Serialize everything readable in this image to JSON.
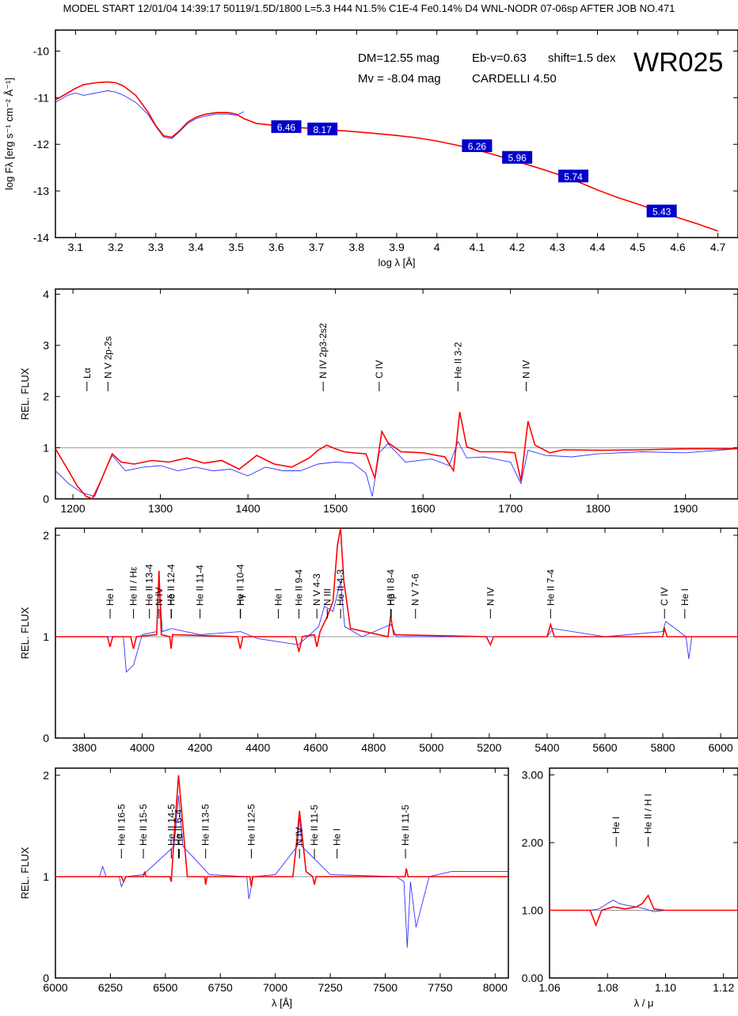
{
  "header": "MODEL START   12/01/04  14:39:17   50119/1.5D/1800 L=5.3 H44 N1.5% C1E-4 Fe0.14% D4 WNL-NODR 07-06sp    AFTER JOB NO.471",
  "colors": {
    "model": "#ff0000",
    "observed": "#3333ff",
    "photometry_box": "#0000cc",
    "reference_line": "#999999"
  },
  "chart_data": [
    {
      "id": "sed",
      "type": "line",
      "title": "WR025",
      "xlabel": "log λ [Å]",
      "ylabel": "log Fλ [erg s⁻¹ cm⁻² Å⁻¹]",
      "xlim": [
        3.05,
        4.75
      ],
      "ylim": [
        -14,
        -9.55
      ],
      "xticks": [
        3.1,
        3.2,
        3.3,
        3.4,
        3.5,
        3.6,
        3.7,
        3.8,
        3.9,
        4.0,
        4.1,
        4.2,
        4.3,
        4.4,
        4.5,
        4.6,
        4.7
      ],
      "yticks": [
        -14,
        -13,
        -12,
        -11,
        -10
      ],
      "annotations": {
        "dm": "DM=12.55 mag",
        "ebv": "Eb-v=0.63",
        "shift": "shift=1.5 dex",
        "mv": "Mv =  -8.04 mag",
        "law": "CARDELLI 4.50"
      },
      "series": [
        {
          "role": "model",
          "x": [
            3.05,
            3.08,
            3.1,
            3.12,
            3.15,
            3.18,
            3.2,
            3.22,
            3.25,
            3.28,
            3.3,
            3.32,
            3.34,
            3.36,
            3.38,
            3.4,
            3.42,
            3.45,
            3.48,
            3.5,
            3.52,
            3.55,
            3.6,
            3.65,
            3.7,
            3.75,
            3.8,
            3.85,
            3.9,
            3.95,
            4.0,
            4.05,
            4.1,
            4.15,
            4.2,
            4.25,
            4.3,
            4.35,
            4.4,
            4.45,
            4.5,
            4.55,
            4.6,
            4.65,
            4.7
          ],
          "y": [
            -11.05,
            -10.9,
            -10.8,
            -10.72,
            -10.68,
            -10.66,
            -10.68,
            -10.75,
            -10.95,
            -11.3,
            -11.6,
            -11.82,
            -11.85,
            -11.7,
            -11.52,
            -11.42,
            -11.36,
            -11.32,
            -11.32,
            -11.35,
            -11.45,
            -11.55,
            -11.6,
            -11.64,
            -11.66,
            -11.7,
            -11.73,
            -11.77,
            -11.81,
            -11.86,
            -11.93,
            -12.02,
            -12.12,
            -12.24,
            -12.37,
            -12.5,
            -12.64,
            -12.8,
            -12.98,
            -13.14,
            -13.28,
            -13.43,
            -13.57,
            -13.71,
            -13.86
          ]
        },
        {
          "role": "observed",
          "x": [
            3.05,
            3.08,
            3.1,
            3.12,
            3.15,
            3.18,
            3.2,
            3.22,
            3.25,
            3.28,
            3.3,
            3.32,
            3.34,
            3.36,
            3.38,
            3.4,
            3.42,
            3.45,
            3.48,
            3.5,
            3.52
          ],
          "y": [
            -11.1,
            -10.95,
            -10.9,
            -10.95,
            -10.9,
            -10.85,
            -10.88,
            -10.95,
            -11.1,
            -11.35,
            -11.62,
            -11.85,
            -11.88,
            -11.72,
            -11.55,
            -11.45,
            -11.4,
            -11.35,
            -11.35,
            -11.38,
            -11.3
          ]
        }
      ],
      "photometry": [
        {
          "x": 3.625,
          "y": -11.62,
          "label": "6.46"
        },
        {
          "x": 3.715,
          "y": -11.67,
          "label": "8.17"
        },
        {
          "x": 4.1,
          "y": -12.03,
          "label": "6.26"
        },
        {
          "x": 4.2,
          "y": -12.28,
          "label": "5.96"
        },
        {
          "x": 4.34,
          "y": -12.68,
          "label": "5.74"
        },
        {
          "x": 4.56,
          "y": -13.43,
          "label": "5.43"
        }
      ]
    },
    {
      "id": "uv",
      "type": "line",
      "ylabel": "REL. FLUX",
      "xlim": [
        1180,
        1960
      ],
      "ylim": [
        0,
        4.1
      ],
      "xticks": [
        1200,
        1300,
        1400,
        1500,
        1600,
        1700,
        1800,
        1900
      ],
      "yticks": [
        0,
        1,
        2,
        3,
        4
      ],
      "lines": [
        {
          "label": "Lα",
          "x": 1216
        },
        {
          "label": "N V 2p-2s",
          "x": 1240
        },
        {
          "label": "N IV 2p3-2s2",
          "x": 1486
        },
        {
          "label": "C IV",
          "x": 1550
        },
        {
          "label": "He II 3-2",
          "x": 1640
        },
        {
          "label": "N IV",
          "x": 1718
        }
      ],
      "series": [
        {
          "role": "model",
          "x": [
            1180,
            1195,
            1205,
            1215,
            1222,
            1230,
            1238,
            1245,
            1255,
            1270,
            1290,
            1310,
            1330,
            1350,
            1370,
            1390,
            1410,
            1430,
            1450,
            1470,
            1480,
            1490,
            1500,
            1510,
            1520,
            1535,
            1545,
            1553,
            1560,
            1575,
            1600,
            1625,
            1635,
            1642,
            1650,
            1665,
            1690,
            1705,
            1712,
            1720,
            1728,
            1745,
            1760,
            1800,
            1850,
            1900,
            1960
          ],
          "y": [
            0.98,
            0.55,
            0.25,
            0.05,
            0.0,
            0.28,
            0.6,
            0.88,
            0.72,
            0.68,
            0.75,
            0.72,
            0.8,
            0.7,
            0.75,
            0.58,
            0.85,
            0.68,
            0.62,
            0.8,
            0.95,
            1.05,
            0.98,
            0.92,
            0.9,
            0.88,
            0.4,
            1.32,
            1.1,
            0.92,
            0.9,
            0.82,
            0.55,
            1.7,
            1.02,
            0.92,
            0.92,
            0.9,
            0.35,
            1.52,
            1.05,
            0.9,
            0.96,
            0.95,
            0.96,
            0.98,
            0.98
          ]
        },
        {
          "role": "observed",
          "x": [
            1180,
            1195,
            1210,
            1225,
            1238,
            1245,
            1260,
            1280,
            1300,
            1320,
            1340,
            1360,
            1380,
            1400,
            1420,
            1440,
            1460,
            1480,
            1500,
            1520,
            1535,
            1542,
            1550,
            1560,
            1580,
            1610,
            1630,
            1640,
            1650,
            1670,
            1700,
            1712,
            1720,
            1740,
            1770,
            1800,
            1850,
            1900,
            1960
          ],
          "y": [
            0.55,
            0.3,
            0.12,
            0.05,
            0.6,
            0.85,
            0.55,
            0.62,
            0.65,
            0.55,
            0.62,
            0.55,
            0.58,
            0.45,
            0.62,
            0.55,
            0.55,
            0.68,
            0.72,
            0.7,
            0.5,
            0.05,
            0.9,
            1.08,
            0.72,
            0.78,
            0.65,
            1.12,
            0.8,
            0.82,
            0.72,
            0.3,
            0.95,
            0.85,
            0.82,
            0.88,
            0.92,
            0.9,
            0.98
          ]
        }
      ]
    },
    {
      "id": "blue",
      "type": "line",
      "ylabel": "REL. FLUX",
      "xlim": [
        3700,
        6060
      ],
      "ylim": [
        0,
        2.07
      ],
      "xticks": [
        3800,
        4000,
        4200,
        4400,
        4600,
        4800,
        5000,
        5200,
        5400,
        5600,
        5800,
        6000
      ],
      "yticks": [
        0,
        1,
        2
      ],
      "lines": [
        {
          "label": "He I",
          "x": 3889
        },
        {
          "label": "He II / Hε",
          "x": 3970
        },
        {
          "label": "He II 13-4",
          "x": 4025
        },
        {
          "label": "N IV",
          "x": 4058
        },
        {
          "label": "He II 12-4",
          "x": 4100
        },
        {
          "label": "Hδ",
          "x": 4101
        },
        {
          "label": "He II 11-4",
          "x": 4200
        },
        {
          "label": "He II 10-4",
          "x": 4339
        },
        {
          "label": "Hγ",
          "x": 4340
        },
        {
          "label": "He I",
          "x": 4471
        },
        {
          "label": "He II 9-4",
          "x": 4542
        },
        {
          "label": "N V 4-3",
          "x": 4604
        },
        {
          "label": "N III",
          "x": 4640
        },
        {
          "label": "He II 4-3",
          "x": 4686
        },
        {
          "label": "He II 8-4",
          "x": 4859
        },
        {
          "label": "Hβ",
          "x": 4861
        },
        {
          "label": "N V 7-6",
          "x": 4945
        },
        {
          "label": "N IV",
          "x": 5204
        },
        {
          "label": "He II 7-4",
          "x": 5412
        },
        {
          "label": "C IV",
          "x": 5806
        },
        {
          "label": "He I",
          "x": 5876
        }
      ],
      "series": [
        {
          "role": "model",
          "x": [
            3700,
            3880,
            3889,
            3898,
            3960,
            3970,
            3980,
            4050,
            4058,
            4066,
            4095,
            4100,
            4105,
            4330,
            4339,
            4348,
            4530,
            4542,
            4554,
            4595,
            4604,
            4615,
            4640,
            4660,
            4675,
            4686,
            4697,
            4720,
            4850,
            4859,
            4870,
            5190,
            5204,
            5215,
            5400,
            5412,
            5425,
            5800,
            5806,
            5815,
            6060
          ],
          "y": [
            1.0,
            1.0,
            0.9,
            1.0,
            1.0,
            0.88,
            1.0,
            1.02,
            1.65,
            1.02,
            1.0,
            0.88,
            1.02,
            1.0,
            0.88,
            1.0,
            1.0,
            0.85,
            1.0,
            1.02,
            0.9,
            1.05,
            1.2,
            1.35,
            1.9,
            2.07,
            1.55,
            1.08,
            1.0,
            1.2,
            1.02,
            1.0,
            0.92,
            1.0,
            1.0,
            1.12,
            1.0,
            1.0,
            1.08,
            1.0,
            1.0
          ]
        },
        {
          "role": "observed",
          "x": [
            3700,
            3900,
            3935,
            3945,
            3970,
            4000,
            4050,
            4058,
            4070,
            4100,
            4200,
            4340,
            4400,
            4540,
            4580,
            4610,
            4630,
            4660,
            4686,
            4700,
            4760,
            4860,
            4880,
            5000,
            5200,
            5400,
            5420,
            5600,
            5800,
            5810,
            5880,
            5890,
            5900,
            6060
          ],
          "y": [
            1.0,
            1.0,
            1.0,
            0.65,
            0.72,
            1.02,
            1.05,
            1.55,
            1.05,
            1.08,
            1.02,
            1.05,
            0.98,
            0.92,
            1.02,
            1.1,
            1.3,
            1.25,
            1.55,
            1.1,
            1.0,
            1.12,
            1.0,
            1.0,
            1.0,
            1.0,
            1.08,
            1.0,
            1.05,
            1.15,
            1.0,
            0.78,
            1.0,
            1.0
          ]
        }
      ]
    },
    {
      "id": "red",
      "type": "line",
      "ylabel": "REL. FLUX",
      "xlabel": "λ [Å]",
      "xlim": [
        6000,
        8060
      ],
      "ylim": [
        0,
        2.07
      ],
      "xticks": [
        6000,
        6250,
        6500,
        6750,
        7000,
        7250,
        7500,
        7750,
        8000
      ],
      "yticks": [
        0,
        1,
        2
      ],
      "lines": [
        {
          "label": "He II 16-5",
          "x": 6300
        },
        {
          "label": "He II 15-5",
          "x": 6400
        },
        {
          "label": "He II 14-5",
          "x": 6527
        },
        {
          "label": "He II 6-4",
          "x": 6560
        },
        {
          "label": "Hα",
          "x": 6563
        },
        {
          "label": "He II 13-5",
          "x": 6683
        },
        {
          "label": "He II 12-5",
          "x": 6891
        },
        {
          "label": "N IV",
          "x": 7110
        },
        {
          "label": "He II 11-5",
          "x": 7178
        },
        {
          "label": "He I",
          "x": 7281
        },
        {
          "label": "He II 11-5",
          "x": 7592
        }
      ],
      "series": [
        {
          "role": "model",
          "x": [
            6000,
            6300,
            6310,
            6320,
            6400,
            6406,
            6412,
            6520,
            6527,
            6540,
            6560,
            6580,
            6600,
            6680,
            6683,
            6690,
            6885,
            6891,
            6897,
            7080,
            7100,
            7110,
            7120,
            7140,
            7170,
            7178,
            7186,
            7590,
            7596,
            7604,
            8060
          ],
          "y": [
            1.0,
            1.0,
            0.95,
            1.0,
            1.0,
            1.05,
            1.0,
            1.0,
            0.95,
            1.4,
            2.0,
            1.5,
            1.0,
            1.0,
            0.92,
            1.0,
            1.0,
            0.9,
            1.0,
            1.0,
            1.4,
            1.65,
            1.45,
            1.05,
            1.0,
            0.92,
            1.0,
            1.0,
            1.08,
            1.0,
            1.0
          ]
        },
        {
          "role": "observed",
          "x": [
            6000,
            6200,
            6215,
            6230,
            6290,
            6300,
            6320,
            6400,
            6540,
            6560,
            6580,
            6700,
            6870,
            6880,
            6900,
            7000,
            7100,
            7110,
            7120,
            7250,
            7550,
            7585,
            7600,
            7615,
            7640,
            7700,
            7800,
            8000,
            8060
          ],
          "y": [
            1.0,
            1.0,
            1.1,
            1.0,
            1.0,
            0.9,
            1.0,
            1.02,
            1.3,
            1.8,
            1.3,
            1.02,
            1.0,
            0.78,
            1.0,
            1.02,
            1.3,
            1.6,
            1.3,
            1.02,
            1.0,
            0.95,
            0.3,
            0.95,
            0.5,
            1.0,
            1.05,
            1.05,
            1.05
          ]
        }
      ]
    },
    {
      "id": "ir",
      "type": "line",
      "xlabel": "λ / μ",
      "xlim": [
        1.06,
        1.125
      ],
      "ylim": [
        0,
        3.1
      ],
      "xticks": [
        1.06,
        1.08,
        1.1,
        1.12
      ],
      "yticks": [
        0,
        1,
        2,
        3
      ],
      "lines": [
        {
          "label": "He I",
          "x": 1.083
        },
        {
          "label": "He II / H I",
          "x": 1.094
        }
      ],
      "series": [
        {
          "role": "model",
          "x": [
            1.06,
            1.074,
            1.076,
            1.078,
            1.082,
            1.086,
            1.09,
            1.092,
            1.094,
            1.096,
            1.1,
            1.125
          ],
          "y": [
            1.0,
            1.0,
            0.78,
            1.0,
            1.05,
            1.02,
            1.05,
            1.1,
            1.22,
            1.02,
            1.0,
            1.0
          ]
        },
        {
          "role": "observed",
          "x": [
            1.06,
            1.074,
            1.077,
            1.08,
            1.082,
            1.084,
            1.086,
            1.09,
            1.093,
            1.096,
            1.1,
            1.125
          ],
          "y": [
            1.0,
            1.0,
            1.02,
            1.1,
            1.15,
            1.1,
            1.08,
            1.05,
            1.02,
            0.98,
            1.0,
            1.0
          ]
        }
      ]
    }
  ]
}
